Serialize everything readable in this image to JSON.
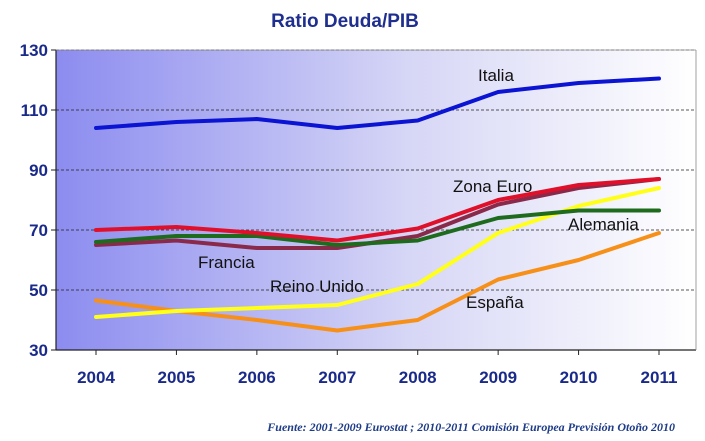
{
  "colors": {
    "title": "#1f2f8f",
    "axis_text": "#1a2a8a",
    "plot_bg_left": "#8c8cf0",
    "plot_bg_right": "#ffffff"
  },
  "chart_data": {
    "type": "line",
    "title": "Ratio Deuda/PIB",
    "xlabel": "",
    "ylabel": "",
    "x": [
      "2004",
      "2005",
      "2006",
      "2007",
      "2008",
      "2009",
      "2010",
      "2011"
    ],
    "ylim": [
      30,
      130
    ],
    "yticks": [
      30,
      50,
      70,
      90,
      110,
      130
    ],
    "grid": "horizontal dashed",
    "series": [
      {
        "name": "Italia",
        "color": "#0a14d2",
        "values": [
          104,
          106,
          107,
          104,
          106.5,
          116,
          119,
          120.5
        ]
      },
      {
        "name": "Zona Euro",
        "color": "#e0102a",
        "values": [
          70,
          71,
          69,
          66.5,
          70.5,
          80,
          85,
          87
        ]
      },
      {
        "name": "Alemania",
        "color": "#1e6b1e",
        "values": [
          66,
          68,
          68,
          65,
          66.5,
          74,
          76.5,
          76.5
        ]
      },
      {
        "name": "Francia",
        "color": "#8a2a4a",
        "values": [
          65,
          66.5,
          64,
          64,
          68,
          78.5,
          84,
          87
        ]
      },
      {
        "name": "Reino Unido",
        "color": "#ffff1a",
        "values": [
          41,
          43,
          44,
          45,
          52,
          69,
          78,
          84
        ]
      },
      {
        "name": "España",
        "color": "#f79018",
        "values": [
          46.5,
          43,
          40,
          36.5,
          40,
          53.5,
          60,
          69
        ]
      }
    ],
    "annotations": [
      {
        "text": "Italia",
        "series": "Italia"
      },
      {
        "text": "Zona Euro",
        "series": "Zona Euro"
      },
      {
        "text": "Alemania",
        "series": "Alemania"
      },
      {
        "text": "Francia",
        "series": "Francia"
      },
      {
        "text": "Reino Unido",
        "series": "Reino Unido"
      },
      {
        "text": "España",
        "series": "España"
      }
    ]
  },
  "source": "Fuente: 2001-2009 Eurostat ; 2010-2011 Comisión Europea Previsión Otoño 2010"
}
